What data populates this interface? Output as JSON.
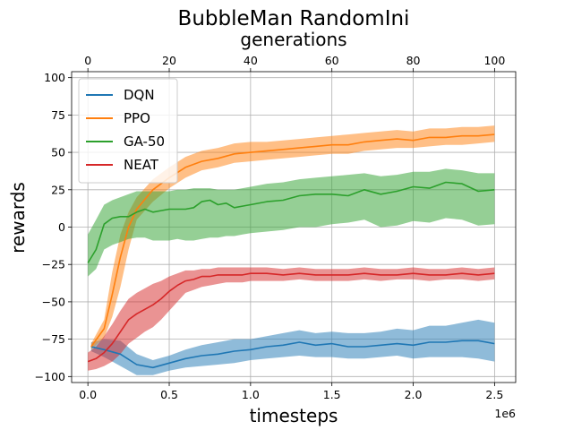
{
  "chart_data": {
    "type": "line",
    "title": "BubbleMan RandomIni",
    "xlabel": "timesteps",
    "ylabel": "rewards",
    "x_offset_label": "1e6",
    "secondary_xlabel": "generations",
    "xlim": [
      -0.1,
      2.63
    ],
    "ylim": [
      -104,
      104
    ],
    "secondary_xlim": [
      -4,
      105.2
    ],
    "grid": true,
    "legend_position": "upper-left",
    "x_ticks": [
      0.0,
      0.5,
      1.0,
      1.5,
      2.0,
      2.5
    ],
    "x_tick_labels": [
      "0.0",
      "0.5",
      "1.0",
      "1.5",
      "2.0",
      "2.5"
    ],
    "y_ticks": [
      -100,
      -75,
      -50,
      -25,
      0,
      25,
      50,
      75,
      100
    ],
    "y_tick_labels": [
      "−100",
      "−75",
      "−50",
      "−25",
      "0",
      "25",
      "50",
      "75",
      "100"
    ],
    "secondary_ticks": [
      0,
      20,
      40,
      60,
      80,
      100
    ],
    "secondary_tick_labels": [
      "0",
      "20",
      "40",
      "60",
      "80",
      "100"
    ],
    "series": [
      {
        "name": "DQN",
        "color": "#1f77b4",
        "axis": "timesteps",
        "x": [
          0.02,
          0.1,
          0.2,
          0.3,
          0.4,
          0.5,
          0.6,
          0.7,
          0.8,
          0.9,
          1.0,
          1.1,
          1.2,
          1.3,
          1.4,
          1.5,
          1.6,
          1.7,
          1.8,
          1.9,
          2.0,
          2.1,
          2.2,
          2.3,
          2.4,
          2.5
        ],
        "y": [
          -80,
          -82,
          -85,
          -92,
          -94,
          -91,
          -88,
          -86,
          -85,
          -83,
          -82,
          -80,
          -79,
          -77,
          -79,
          -78,
          -80,
          -80,
          -79,
          -78,
          -79,
          -77,
          -77,
          -76,
          -76,
          -78
        ],
        "lower": [
          -83,
          -87,
          -93,
          -99,
          -99,
          -96,
          -94,
          -93,
          -92,
          -91,
          -89,
          -88,
          -87,
          -86,
          -87,
          -87,
          -88,
          -88,
          -87,
          -86,
          -88,
          -87,
          -87,
          -87,
          -88,
          -90
        ],
        "upper": [
          -77,
          -75,
          -76,
          -85,
          -89,
          -86,
          -82,
          -79,
          -77,
          -75,
          -75,
          -73,
          -71,
          -69,
          -71,
          -70,
          -71,
          -71,
          -70,
          -68,
          -69,
          -66,
          -66,
          -64,
          -62,
          -64
        ]
      },
      {
        "name": "PPO",
        "color": "#ff7f0e",
        "axis": "timesteps",
        "x": [
          0.02,
          0.1,
          0.15,
          0.2,
          0.25,
          0.3,
          0.4,
          0.5,
          0.6,
          0.7,
          0.8,
          0.9,
          1.0,
          1.1,
          1.2,
          1.3,
          1.4,
          1.5,
          1.6,
          1.7,
          1.8,
          1.9,
          2.0,
          2.1,
          2.2,
          2.3,
          2.4,
          2.5
        ],
        "y": [
          -80,
          -68,
          -45,
          -20,
          0,
          12,
          25,
          33,
          40,
          44,
          46,
          49,
          50,
          51,
          52,
          53,
          54,
          55,
          55,
          57,
          58,
          59,
          58,
          60,
          60,
          61,
          61,
          62
        ],
        "lower": [
          -82,
          -74,
          -60,
          -40,
          -15,
          5,
          17,
          26,
          33,
          38,
          40,
          43,
          44,
          45,
          46,
          47,
          48,
          49,
          49,
          51,
          52,
          53,
          53,
          54,
          55,
          55,
          56,
          57
        ],
        "upper": [
          -78,
          -62,
          -30,
          -5,
          10,
          20,
          32,
          40,
          47,
          51,
          53,
          56,
          57,
          57,
          58,
          59,
          60,
          61,
          62,
          63,
          64,
          65,
          64,
          66,
          66,
          67,
          67,
          68
        ]
      },
      {
        "name": "GA-50",
        "color": "#2ca02c",
        "axis": "generations",
        "x": [
          0,
          2,
          4,
          6,
          8,
          10,
          12,
          14,
          16,
          18,
          20,
          22,
          24,
          26,
          28,
          30,
          32,
          34,
          36,
          38,
          40,
          44,
          48,
          52,
          56,
          60,
          64,
          68,
          72,
          76,
          80,
          84,
          88,
          92,
          96,
          100
        ],
        "y": [
          -24,
          -15,
          2,
          6,
          7,
          7,
          10,
          12,
          10,
          11,
          12,
          12,
          12,
          13,
          17,
          18,
          15,
          16,
          13,
          14,
          15,
          17,
          18,
          21,
          22,
          22,
          21,
          25,
          22,
          24,
          27,
          26,
          30,
          29,
          24,
          25
        ],
        "lower": [
          -33,
          -28,
          -15,
          -12,
          -10,
          -8,
          -7,
          -7,
          -9,
          -9,
          -9,
          -8,
          -9,
          -9,
          -8,
          -7,
          -7,
          -6,
          -6,
          -5,
          -4,
          -3,
          -2,
          0,
          0,
          2,
          3,
          5,
          0,
          1,
          4,
          3,
          6,
          5,
          1,
          2
        ],
        "upper": [
          -5,
          5,
          15,
          18,
          20,
          22,
          24,
          24,
          24,
          24,
          24,
          25,
          25,
          26,
          26,
          26,
          25,
          25,
          25,
          26,
          27,
          29,
          30,
          32,
          33,
          34,
          35,
          36,
          34,
          35,
          37,
          37,
          39,
          38,
          36,
          36
        ]
      },
      {
        "name": "NEAT",
        "color": "#d62728",
        "axis": "generations",
        "x": [
          0,
          2,
          4,
          6,
          8,
          10,
          12,
          14,
          16,
          18,
          20,
          22,
          24,
          26,
          28,
          30,
          32,
          34,
          36,
          38,
          40,
          44,
          48,
          52,
          56,
          60,
          64,
          68,
          72,
          76,
          80,
          84,
          88,
          92,
          96,
          100
        ],
        "y": [
          -90,
          -88,
          -84,
          -78,
          -70,
          -62,
          -58,
          -55,
          -52,
          -48,
          -43,
          -39,
          -36,
          -35,
          -33,
          -33,
          -32,
          -32,
          -32,
          -32,
          -31,
          -31,
          -32,
          -31,
          -32,
          -32,
          -32,
          -31,
          -32,
          -32,
          -31,
          -32,
          -32,
          -31,
          -32,
          -31
        ],
        "lower": [
          -96,
          -95,
          -93,
          -90,
          -85,
          -78,
          -74,
          -70,
          -67,
          -62,
          -56,
          -50,
          -44,
          -42,
          -40,
          -39,
          -38,
          -37,
          -37,
          -37,
          -36,
          -36,
          -36,
          -35,
          -36,
          -36,
          -36,
          -35,
          -36,
          -35,
          -35,
          -36,
          -35,
          -35,
          -36,
          -35
        ],
        "upper": [
          -84,
          -80,
          -73,
          -65,
          -56,
          -48,
          -44,
          -41,
          -38,
          -36,
          -33,
          -31,
          -29,
          -29,
          -28,
          -28,
          -27,
          -27,
          -27,
          -27,
          -27,
          -27,
          -28,
          -27,
          -28,
          -28,
          -28,
          -27,
          -28,
          -28,
          -27,
          -28,
          -28,
          -27,
          -28,
          -27
        ]
      }
    ]
  }
}
